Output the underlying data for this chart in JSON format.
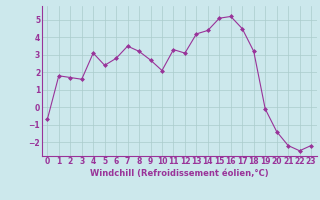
{
  "x": [
    0,
    1,
    2,
    3,
    4,
    5,
    6,
    7,
    8,
    9,
    10,
    11,
    12,
    13,
    14,
    15,
    16,
    17,
    18,
    19,
    20,
    21,
    22,
    23
  ],
  "y": [
    -0.7,
    1.8,
    1.7,
    1.6,
    3.1,
    2.4,
    2.8,
    3.5,
    3.2,
    2.7,
    2.1,
    3.3,
    3.1,
    4.2,
    4.4,
    5.1,
    5.2,
    4.5,
    3.2,
    -0.1,
    -1.4,
    -2.2,
    -2.5,
    -2.2
  ],
  "line_color": "#993399",
  "marker": "D",
  "marker_size": 2.0,
  "bg_color": "#cce8ec",
  "grid_color": "#aacccc",
  "xlabel": "Windchill (Refroidissement éolien,°C)",
  "xlabel_color": "#993399",
  "xlabel_fontsize": 6.0,
  "tick_color": "#993399",
  "tick_fontsize": 5.5,
  "ylim": [
    -2.8,
    5.8
  ],
  "xlim": [
    -0.5,
    23.5
  ],
  "yticks": [
    -2,
    -1,
    0,
    1,
    2,
    3,
    4,
    5
  ],
  "xticks": [
    0,
    1,
    2,
    3,
    4,
    5,
    6,
    7,
    8,
    9,
    10,
    11,
    12,
    13,
    14,
    15,
    16,
    17,
    18,
    19,
    20,
    21,
    22,
    23
  ]
}
